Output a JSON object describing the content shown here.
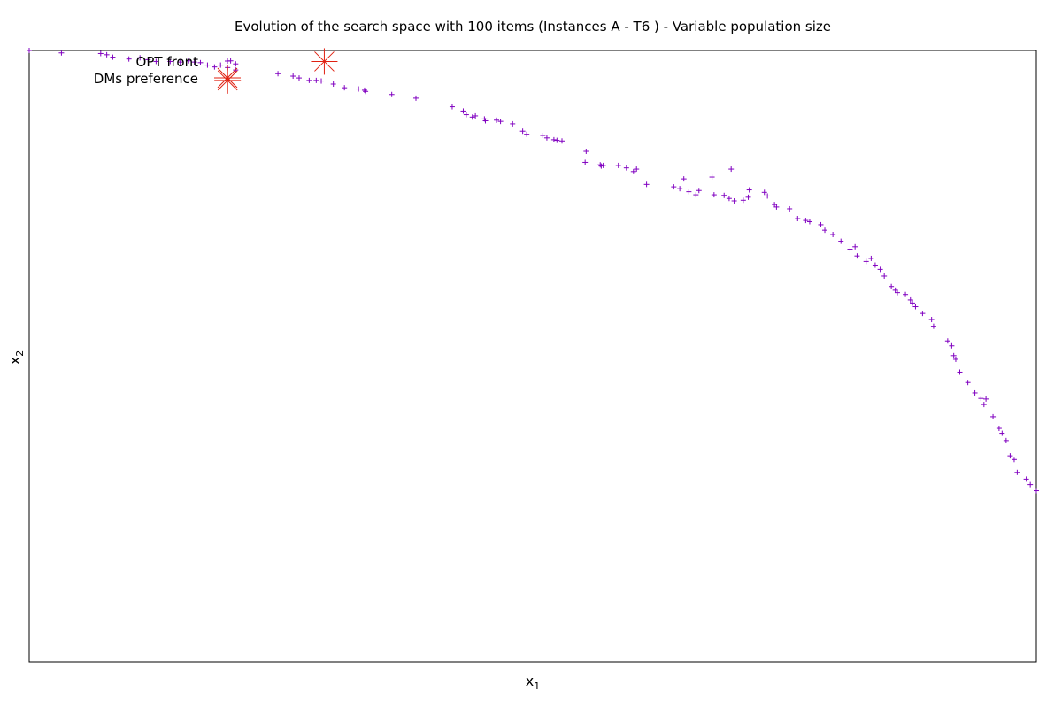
{
  "chart_data": {
    "type": "scatter",
    "title": "Evolution of the search space with 100 items (Instances A - T6 ) - Variable population size",
    "xlabel": {
      "main": "x",
      "sub": "1"
    },
    "ylabel": {
      "main": "x",
      "sub": "2"
    },
    "xlim": [
      0,
      1
    ],
    "ylim": [
      0,
      1
    ],
    "ticks_shown": false,
    "grid": false,
    "legend": {
      "placement": "top-left",
      "entries": [
        {
          "label": "OPT front",
          "marker": "plus",
          "color": "#8000c0"
        },
        {
          "label": "DMs preference",
          "marker": "star",
          "color": "#e02010"
        }
      ]
    },
    "series": [
      {
        "name": "OPT front",
        "marker": "plus",
        "color": "#8000c0",
        "points": [
          [
            0.0,
            1.0
          ],
          [
            0.032,
            0.996
          ],
          [
            0.071,
            0.995
          ],
          [
            0.077,
            0.993
          ],
          [
            0.083,
            0.989
          ],
          [
            0.099,
            0.986
          ],
          [
            0.11,
            0.988
          ],
          [
            0.118,
            0.985
          ],
          [
            0.126,
            0.982
          ],
          [
            0.14,
            0.982
          ],
          [
            0.15,
            0.981
          ],
          [
            0.158,
            0.983
          ],
          [
            0.164,
            0.981
          ],
          [
            0.17,
            0.98
          ],
          [
            0.177,
            0.976
          ],
          [
            0.184,
            0.973
          ],
          [
            0.19,
            0.976
          ],
          [
            0.197,
            0.972
          ],
          [
            0.205,
            0.968
          ],
          [
            0.2,
            0.983
          ],
          [
            0.205,
            0.978
          ],
          [
            0.247,
            0.962
          ],
          [
            0.262,
            0.958
          ],
          [
            0.268,
            0.955
          ],
          [
            0.278,
            0.951
          ],
          [
            0.285,
            0.951
          ],
          [
            0.29,
            0.95
          ],
          [
            0.302,
            0.945
          ],
          [
            0.313,
            0.939
          ],
          [
            0.327,
            0.937
          ],
          [
            0.333,
            0.935
          ],
          [
            0.334,
            0.933
          ],
          [
            0.36,
            0.928
          ],
          [
            0.384,
            0.922
          ],
          [
            0.42,
            0.908
          ],
          [
            0.431,
            0.901
          ],
          [
            0.434,
            0.895
          ],
          [
            0.44,
            0.891
          ],
          [
            0.443,
            0.893
          ],
          [
            0.452,
            0.888
          ],
          [
            0.453,
            0.885
          ],
          [
            0.464,
            0.886
          ],
          [
            0.468,
            0.884
          ],
          [
            0.48,
            0.88
          ],
          [
            0.494,
            0.863
          ],
          [
            0.49,
            0.868
          ],
          [
            0.51,
            0.861
          ],
          [
            0.514,
            0.857
          ],
          [
            0.521,
            0.854
          ],
          [
            0.524,
            0.853
          ],
          [
            0.529,
            0.852
          ],
          [
            0.553,
            0.835
          ],
          [
            0.552,
            0.817
          ],
          [
            0.567,
            0.813
          ],
          [
            0.57,
            0.812
          ],
          [
            0.568,
            0.811
          ],
          [
            0.585,
            0.812
          ],
          [
            0.593,
            0.808
          ],
          [
            0.603,
            0.806
          ],
          [
            0.6,
            0.802
          ],
          [
            0.613,
            0.781
          ],
          [
            0.64,
            0.777
          ],
          [
            0.646,
            0.774
          ],
          [
            0.655,
            0.769
          ],
          [
            0.662,
            0.764
          ],
          [
            0.665,
            0.771
          ],
          [
            0.68,
            0.764
          ],
          [
            0.69,
            0.763
          ],
          [
            0.7,
            0.754
          ],
          [
            0.695,
            0.758
          ],
          [
            0.709,
            0.755
          ],
          [
            0.714,
            0.76
          ],
          [
            0.73,
            0.768
          ],
          [
            0.733,
            0.762
          ],
          [
            0.65,
            0.79
          ],
          [
            0.678,
            0.793
          ],
          [
            0.697,
            0.806
          ],
          [
            0.715,
            0.772
          ],
          [
            0.74,
            0.748
          ],
          [
            0.742,
            0.744
          ],
          [
            0.755,
            0.741
          ],
          [
            0.763,
            0.725
          ],
          [
            0.771,
            0.722
          ],
          [
            0.775,
            0.72
          ],
          [
            0.786,
            0.715
          ],
          [
            0.79,
            0.706
          ],
          [
            0.798,
            0.699
          ],
          [
            0.806,
            0.688
          ],
          [
            0.815,
            0.675
          ],
          [
            0.82,
            0.679
          ],
          [
            0.822,
            0.664
          ],
          [
            0.831,
            0.655
          ],
          [
            0.84,
            0.649
          ],
          [
            0.836,
            0.66
          ],
          [
            0.845,
            0.642
          ],
          [
            0.849,
            0.631
          ],
          [
            0.856,
            0.614
          ],
          [
            0.86,
            0.608
          ],
          [
            0.862,
            0.604
          ],
          [
            0.87,
            0.601
          ],
          [
            0.875,
            0.592
          ],
          [
            0.877,
            0.587
          ],
          [
            0.88,
            0.581
          ],
          [
            0.887,
            0.57
          ],
          [
            0.896,
            0.56
          ],
          [
            0.898,
            0.549
          ],
          [
            0.912,
            0.525
          ],
          [
            0.916,
            0.517
          ],
          [
            0.918,
            0.501
          ],
          [
            0.92,
            0.495
          ],
          [
            0.924,
            0.474
          ],
          [
            0.932,
            0.457
          ],
          [
            0.939,
            0.44
          ],
          [
            0.945,
            0.431
          ],
          [
            0.95,
            0.43
          ],
          [
            0.948,
            0.421
          ],
          [
            0.957,
            0.401
          ],
          [
            0.963,
            0.382
          ],
          [
            0.966,
            0.374
          ],
          [
            0.97,
            0.362
          ],
          [
            0.974,
            0.337
          ],
          [
            0.978,
            0.331
          ],
          [
            0.981,
            0.31
          ],
          [
            0.99,
            0.299
          ],
          [
            0.994,
            0.29
          ],
          [
            1.0,
            0.28
          ]
        ]
      },
      {
        "name": "DMs preference",
        "marker": "star",
        "color": "#e02010",
        "points": [
          [
            0.197,
            0.951
          ],
          [
            0.293,
            0.982
          ]
        ]
      }
    ]
  }
}
